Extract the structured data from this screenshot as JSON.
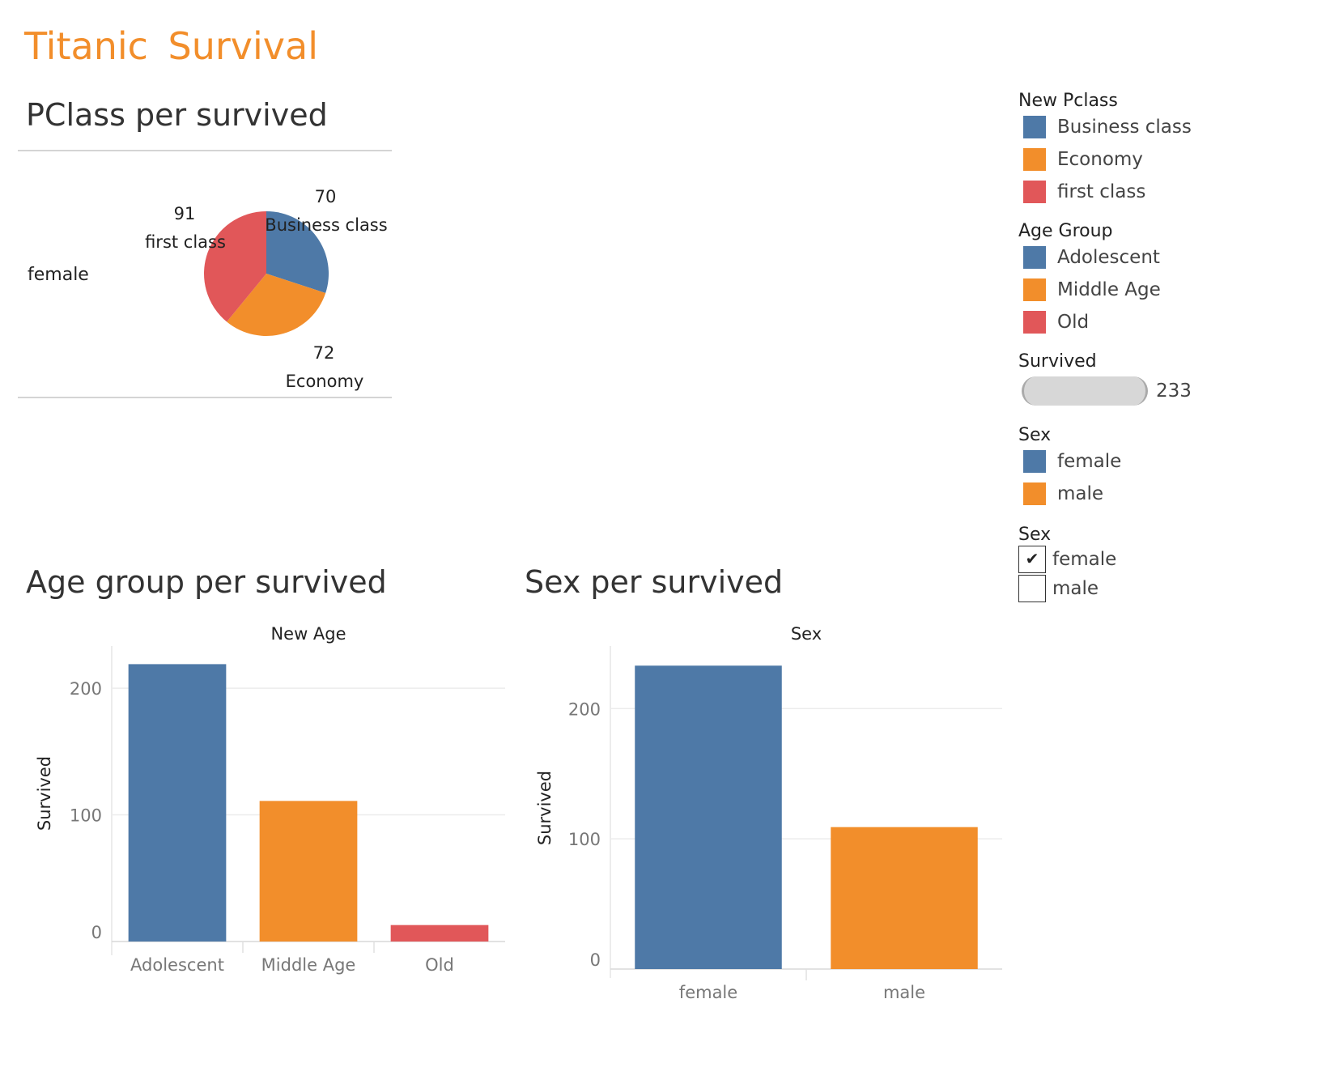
{
  "dashboard": {
    "title": "Titanic  Survival"
  },
  "pie_section": {
    "title": "PClass per survived",
    "row_label": "female"
  },
  "age_section": {
    "title": "Age group per survived"
  },
  "sex_section": {
    "title": "Sex per survived"
  },
  "legends": {
    "pclass": {
      "title": "New Pclass",
      "items": [
        {
          "label": "Business class",
          "color": "#4e79a7"
        },
        {
          "label": "Economy",
          "color": "#f28e2b"
        },
        {
          "label": "first class",
          "color": "#e15759"
        }
      ]
    },
    "age_group": {
      "title": "Age Group",
      "items": [
        {
          "label": "Adolescent",
          "color": "#4e79a7"
        },
        {
          "label": "Middle Age",
          "color": "#f28e2b"
        },
        {
          "label": "Old",
          "color": "#e15759"
        }
      ]
    },
    "survived": {
      "title": "Survived",
      "value": "233"
    },
    "sex": {
      "title": "Sex",
      "items": [
        {
          "label": "female",
          "color": "#4e79a7"
        },
        {
          "label": "male",
          "color": "#f28e2b"
        }
      ]
    }
  },
  "filter": {
    "title": "Sex",
    "options": [
      {
        "label": "female",
        "checked": true,
        "mark": "✔"
      },
      {
        "label": "male",
        "checked": false,
        "mark": ""
      }
    ]
  },
  "chart_data": [
    {
      "type": "pie",
      "title": "PClass per survived",
      "row": "female",
      "slices": [
        {
          "label": "Business class",
          "value": 70,
          "color": "#4e79a7"
        },
        {
          "label": "Economy",
          "value": 72,
          "color": "#f28e2b"
        },
        {
          "label": "first class",
          "value": 91,
          "color": "#e15759"
        }
      ]
    },
    {
      "type": "bar",
      "title": "Age group per survived",
      "column_header": "New Age",
      "xlabel": "",
      "ylabel": "Survived",
      "categories": [
        "Adolescent",
        "Middle Age",
        "Old"
      ],
      "values": [
        219,
        111,
        13
      ],
      "colors": [
        "#4e79a7",
        "#f28e2b",
        "#e15759"
      ],
      "ylim": [
        0,
        225
      ],
      "yticks": [
        0,
        100,
        200
      ],
      "grid": true
    },
    {
      "type": "bar",
      "title": "Sex per survived",
      "column_header": "Sex",
      "xlabel": "",
      "ylabel": "Survived",
      "categories": [
        "female",
        "male"
      ],
      "values": [
        233,
        109
      ],
      "colors": [
        "#4e79a7",
        "#f28e2b"
      ],
      "ylim": [
        0,
        235
      ],
      "yticks": [
        0,
        100,
        200
      ],
      "grid": true
    }
  ]
}
